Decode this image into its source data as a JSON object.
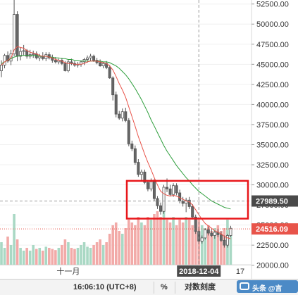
{
  "chart_data": {
    "type": "candlestick",
    "y_ticks": [
      20000,
      22500,
      25000,
      27500,
      30000,
      32500,
      35000,
      37500,
      40000,
      42500,
      45000,
      47500,
      50000,
      52500
    ],
    "y_tick_labels": [
      "20000.00",
      "22500.00",
      "25000.00",
      "27500.00",
      "30000.00",
      "32500.00",
      "35000.00",
      "37500.00",
      "40000.00",
      "42500.00",
      "45000.00",
      "47500.00",
      "50000.00",
      "52500.00"
    ],
    "ylim": [
      19800,
      53000
    ],
    "x_labels": [
      {
        "label": "十一月",
        "index": 21
      },
      {
        "label": "2018-12-04",
        "index": 62
      },
      {
        "label": "17",
        "index": 75
      }
    ],
    "candles": [
      [
        44200,
        45500,
        43400,
        44900
      ],
      [
        44900,
        46300,
        44500,
        46100
      ],
      [
        46100,
        46600,
        45200,
        45400
      ],
      [
        45400,
        46800,
        44900,
        46300
      ],
      [
        46300,
        53500,
        46000,
        51200
      ],
      [
        51200,
        51600,
        45400,
        46000
      ],
      [
        46000,
        47100,
        45500,
        46600
      ],
      [
        46600,
        47400,
        46100,
        46700
      ],
      [
        46700,
        46900,
        45700,
        46000
      ],
      [
        46000,
        46800,
        45700,
        46200
      ],
      [
        46200,
        46700,
        45800,
        46300
      ],
      [
        46300,
        46600,
        45600,
        45800
      ],
      [
        45800,
        46300,
        45400,
        46000
      ],
      [
        46000,
        46500,
        45500,
        45700
      ],
      [
        45700,
        46500,
        45400,
        46200
      ],
      [
        46200,
        46500,
        45600,
        45800
      ],
      [
        45800,
        46200,
        45200,
        45500
      ],
      [
        45500,
        45900,
        45100,
        45300
      ],
      [
        45300,
        45700,
        45000,
        45500
      ],
      [
        45500,
        45800,
        44900,
        45100
      ],
      [
        45100,
        45400,
        44100,
        44200
      ],
      [
        44200,
        45600,
        44000,
        45300
      ],
      [
        45300,
        45700,
        44900,
        45100
      ],
      [
        45100,
        45400,
        44700,
        44900
      ],
      [
        44900,
        45300,
        44600,
        45000
      ],
      [
        45000,
        45500,
        44700,
        45300
      ],
      [
        45300,
        45800,
        44900,
        45600
      ],
      [
        45600,
        46100,
        45200,
        45800
      ],
      [
        45800,
        46300,
        45400,
        46000
      ],
      [
        46000,
        46200,
        45300,
        45500
      ],
      [
        45500,
        45800,
        45000,
        45200
      ],
      [
        45200,
        45600,
        44700,
        44800
      ],
      [
        44800,
        45300,
        44500,
        45100
      ],
      [
        45100,
        45400,
        44400,
        44600
      ],
      [
        44600,
        44900,
        43200,
        43300
      ],
      [
        43300,
        43500,
        40500,
        41200
      ],
      [
        41200,
        41600,
        38400,
        38800
      ],
      [
        38800,
        39200,
        38100,
        38300
      ],
      [
        38300,
        39500,
        37900,
        39100
      ],
      [
        39100,
        39600,
        37800,
        38000
      ],
      [
        38000,
        38300,
        34800,
        35100
      ],
      [
        35100,
        35500,
        34200,
        34500
      ],
      [
        34500,
        34900,
        32500,
        32800
      ],
      [
        32800,
        33200,
        31000,
        31300
      ],
      [
        31300,
        31900,
        30600,
        31600
      ],
      [
        31600,
        31900,
        30100,
        30300
      ],
      [
        30300,
        30600,
        29200,
        29500
      ],
      [
        29500,
        30800,
        29200,
        30400
      ],
      [
        30400,
        30700,
        28000,
        28300
      ],
      [
        28300,
        28600,
        27000,
        27400
      ],
      [
        27400,
        27800,
        26300,
        26700
      ],
      [
        26700,
        30000,
        26400,
        29700
      ],
      [
        29700,
        30800,
        29100,
        29500
      ],
      [
        29500,
        30000,
        28600,
        28800
      ],
      [
        28800,
        30200,
        28500,
        29900
      ],
      [
        29900,
        30200,
        28700,
        29000
      ],
      [
        29000,
        29400,
        27700,
        28000
      ],
      [
        28000,
        28500,
        27300,
        27700
      ],
      [
        27700,
        28400,
        26600,
        28100
      ],
      [
        28100,
        28500,
        27000,
        27300
      ],
      [
        27300,
        27600,
        25700,
        26000
      ],
      [
        26000,
        26300,
        23900,
        24200
      ],
      [
        24200,
        24800,
        22600,
        23000
      ],
      [
        23000,
        23700,
        22700,
        23400
      ],
      [
        23400,
        24600,
        23200,
        24400
      ],
      [
        24400,
        24800,
        23700,
        24000
      ],
      [
        24000,
        24500,
        23500,
        23700
      ],
      [
        23700,
        24300,
        23300,
        24100
      ],
      [
        24100,
        24500,
        23500,
        23800
      ],
      [
        23800,
        24200,
        22900,
        23100
      ],
      [
        23100,
        23700,
        22200,
        22500
      ],
      [
        22500,
        23900,
        22200,
        23700
      ],
      [
        23700,
        24900,
        23500,
        24600
      ]
    ],
    "ma_short": [
      44900,
      45300,
      45500,
      45800,
      46800,
      47200,
      47100,
      47000,
      46700,
      46500,
      46400,
      46300,
      46100,
      46000,
      46000,
      45900,
      45800,
      45600,
      45500,
      45400,
      45200,
      45100,
      45100,
      45000,
      45000,
      45000,
      45100,
      45300,
      45400,
      45400,
      45400,
      45300,
      45200,
      45100,
      44800,
      44300,
      43500,
      42600,
      41800,
      40900,
      39700,
      38500,
      37300,
      36000,
      34900,
      33800,
      32800,
      31900,
      30900,
      30000,
      29200,
      28900,
      28700,
      28600,
      28700,
      28600,
      28400,
      28200,
      28000,
      27900,
      27500,
      26900,
      26300,
      25700,
      25200,
      24900,
      24600,
      24300,
      24100,
      23900,
      23600,
      23400,
      23300
    ],
    "ma_long": [
      45100,
      45300,
      45500,
      45700,
      45900,
      46000,
      46100,
      46100,
      46100,
      46100,
      46100,
      46100,
      46000,
      46000,
      46000,
      45900,
      45900,
      45800,
      45800,
      45700,
      45700,
      45600,
      45600,
      45500,
      45500,
      45400,
      45400,
      45400,
      45400,
      45400,
      45400,
      45400,
      45300,
      45300,
      45200,
      45000,
      44800,
      44500,
      44100,
      43700,
      43200,
      42600,
      42000,
      41300,
      40600,
      39800,
      39000,
      38100,
      37300,
      36500,
      35700,
      34900,
      34200,
      33600,
      33000,
      32400,
      31900,
      31400,
      30900,
      30500,
      30000,
      29600,
      29200,
      28900,
      28600,
      28300,
      28000,
      27800,
      27600,
      27400,
      27200,
      27100,
      27000
    ],
    "volumes": [
      0.4,
      0.3,
      0.5,
      0.35,
      0.9,
      0.45,
      0.3,
      0.25,
      0.3,
      0.25,
      0.35,
      0.28,
      0.3,
      0.25,
      0.32,
      0.3,
      0.28,
      0.26,
      0.3,
      0.35,
      0.45,
      0.4,
      0.3,
      0.28,
      0.3,
      0.35,
      0.4,
      0.32,
      0.3,
      0.35,
      0.4,
      0.45,
      0.35,
      0.4,
      0.55,
      0.7,
      0.75,
      0.6,
      0.55,
      0.65,
      0.8,
      0.75,
      0.7,
      0.85,
      0.75,
      0.7,
      0.85,
      0.8,
      0.9,
      0.95,
      0.85,
      1.0,
      0.8,
      0.75,
      0.85,
      0.7,
      0.8,
      0.75,
      0.85,
      0.8,
      0.7,
      0.75,
      0.8,
      0.7,
      0.65,
      0.7,
      0.6,
      0.65,
      0.7,
      0.6,
      0.65,
      0.8,
      0.6
    ],
    "last_price_label": "24516.09",
    "last_price_value": 24516.09,
    "crosshair_price_label": "27989.50",
    "crosshair_price_value": 27989.5,
    "crosshair_index": 62,
    "highlight_box": {
      "index_from": 42,
      "index_to": 71,
      "price_low": 25800,
      "price_high": 30500
    },
    "colors": {
      "up": "#26a69a",
      "down": "#ef5350",
      "candle_body_up": "#ffffff",
      "candle_body_down": "#666666",
      "ma_short": "#e8544a",
      "ma_long": "#2e9e3c",
      "volume_up": "#a9d8c4",
      "volume_down": "#f2aaa8",
      "highlight": "#e8161a",
      "last_price": "#e8544a",
      "crosshair": "#999999",
      "crosshair_label_bg": "#4a4a4a"
    }
  },
  "bottom_bar": {
    "time": "16:06:10 (UTC+8)",
    "percent": "%",
    "log_scale": "对数刻度",
    "watermark": "头条 @言"
  }
}
